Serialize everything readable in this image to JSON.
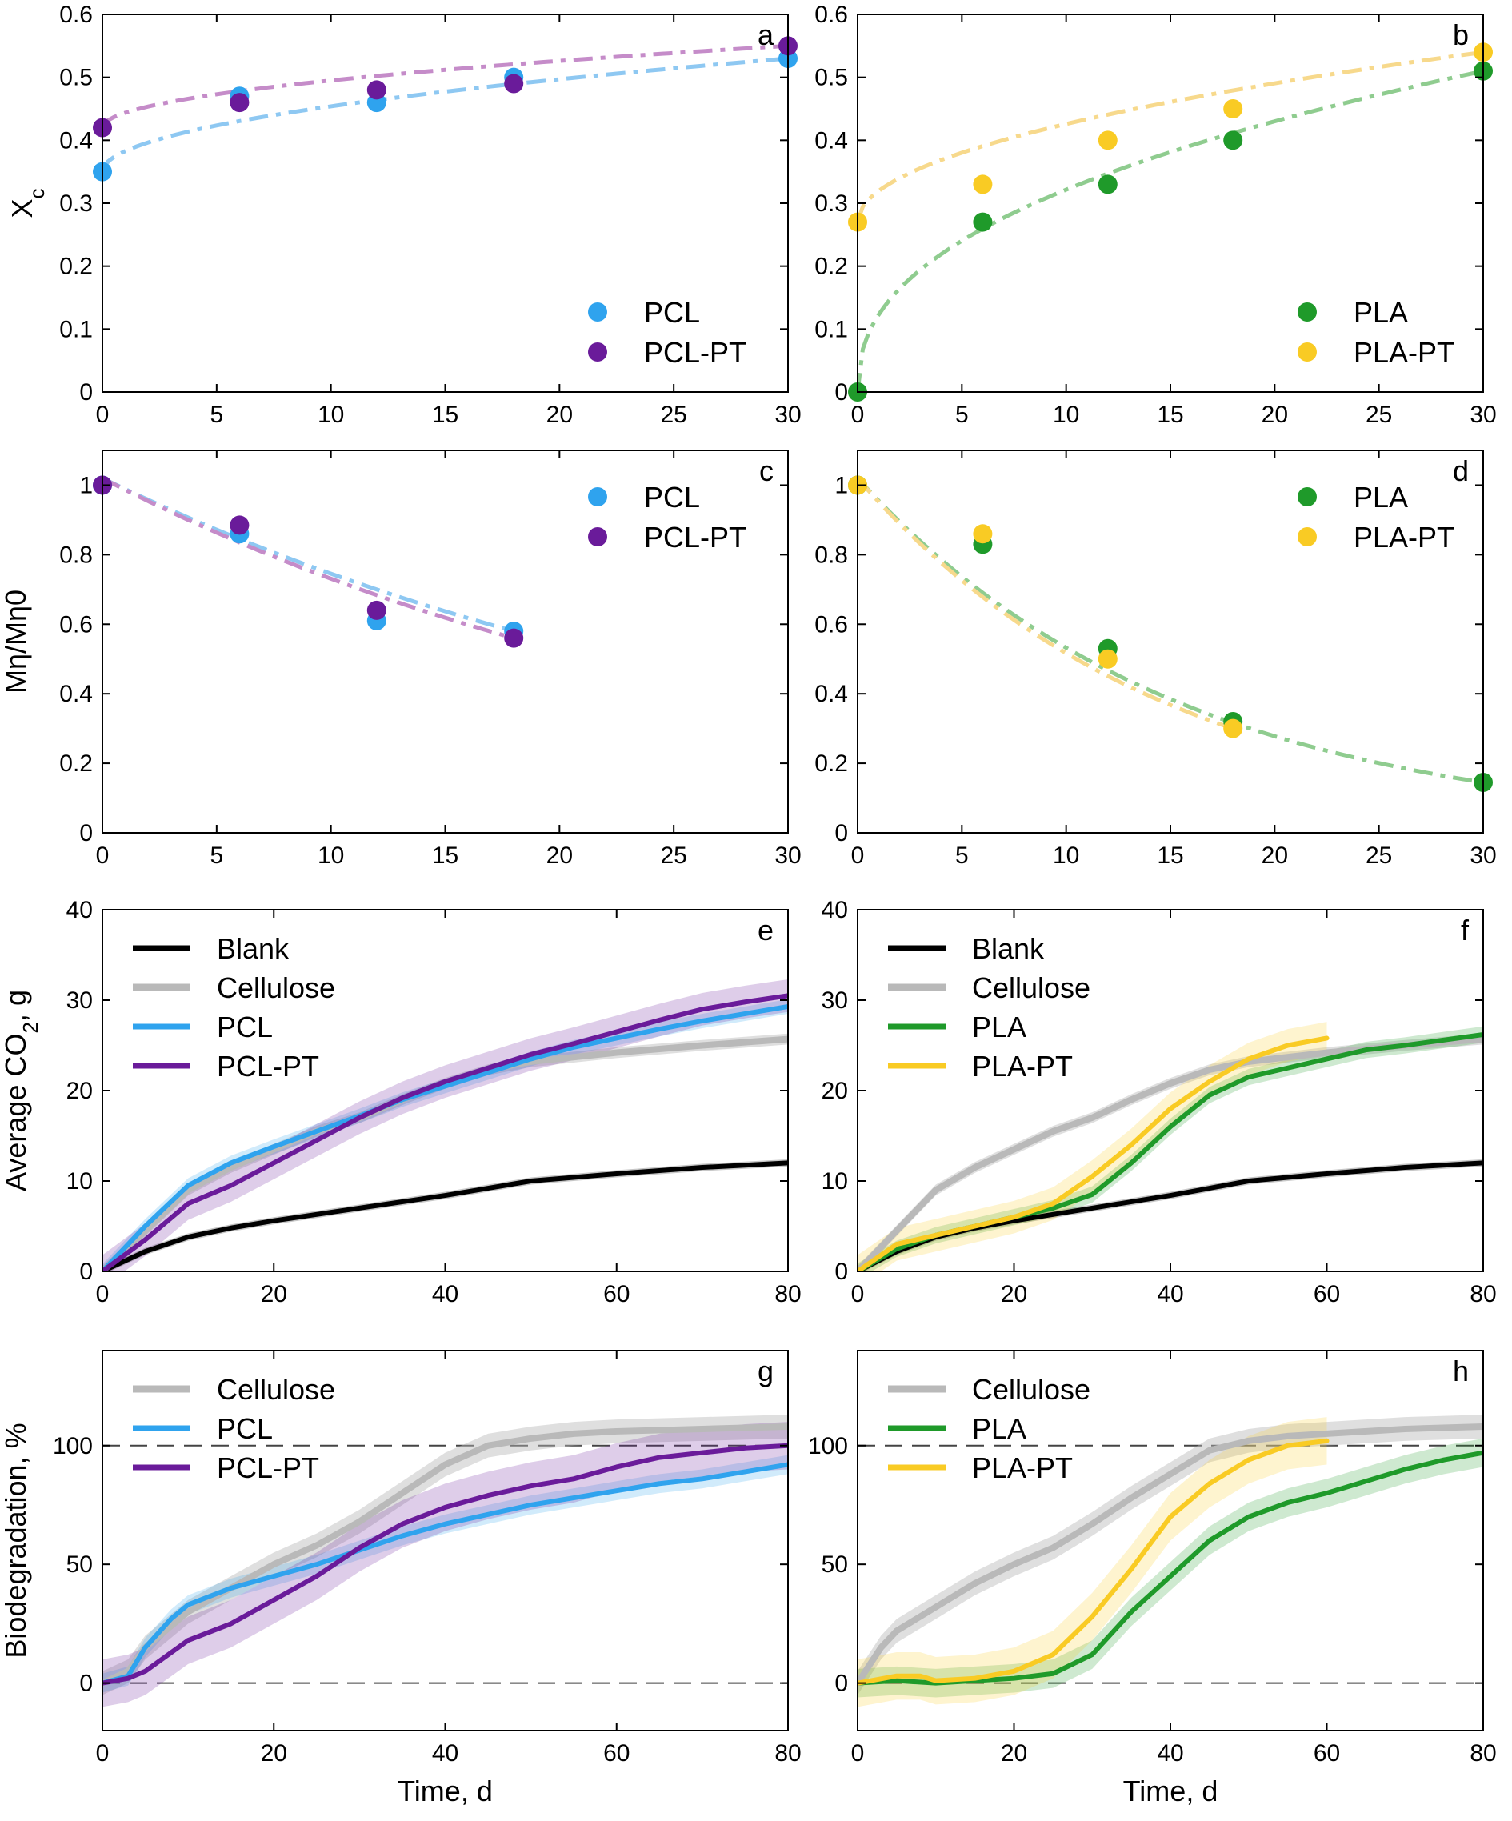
{
  "colors": {
    "PCL": "#2fa3ee",
    "PCL-PT": "#6a1b9a",
    "PLA": "#1f9a2a",
    "PLA-PT": "#f9cb24",
    "Blank": "#000000",
    "Cellulose": "#b9b9b9",
    "fit_PCL": "#8ec8f2",
    "fit_PCL-PT": "#c58cc9",
    "fit_PLA": "#8fcc8f",
    "fit_PLA-PT": "#f7d98c"
  },
  "axis_labels": {
    "xc": "X_c",
    "mn": "Mη/Mη0",
    "co2": "Average CO_2, g",
    "bio": "Biodegradation, %",
    "time": "Time, d"
  },
  "chart_data": [
    {
      "panel": "a",
      "type": "scatter",
      "xlabel": "",
      "ylabel": "X_c",
      "xlim": [
        0,
        30
      ],
      "ylim": [
        0,
        0.6
      ],
      "xticks": [
        0,
        5,
        10,
        15,
        20,
        25,
        30
      ],
      "yticks": [
        0,
        0.1,
        0.2,
        0.3,
        0.4,
        0.5,
        0.6
      ],
      "legend": "bottom-right",
      "series": [
        {
          "name": "PCL",
          "x": [
            0,
            6,
            12,
            18,
            30
          ],
          "y": [
            0.35,
            0.47,
            0.46,
            0.5,
            0.53
          ],
          "fit": "power"
        },
        {
          "name": "PCL-PT",
          "x": [
            0,
            6,
            12,
            18,
            30
          ],
          "y": [
            0.42,
            0.46,
            0.48,
            0.49,
            0.55
          ],
          "fit": "power"
        }
      ]
    },
    {
      "panel": "b",
      "type": "scatter",
      "xlabel": "",
      "ylabel": "",
      "xlim": [
        0,
        30
      ],
      "ylim": [
        0,
        0.6
      ],
      "xticks": [
        0,
        5,
        10,
        15,
        20,
        25,
        30
      ],
      "yticks": [
        0,
        0.1,
        0.2,
        0.3,
        0.4,
        0.5,
        0.6
      ],
      "legend": "bottom-right",
      "series": [
        {
          "name": "PLA",
          "x": [
            0,
            6,
            12,
            18,
            30
          ],
          "y": [
            0.0,
            0.27,
            0.33,
            0.4,
            0.51
          ],
          "fit": "power"
        },
        {
          "name": "PLA-PT",
          "x": [
            0,
            6,
            12,
            18,
            30
          ],
          "y": [
            0.27,
            0.33,
            0.4,
            0.45,
            0.54
          ],
          "fit": "power"
        }
      ]
    },
    {
      "panel": "c",
      "type": "scatter",
      "xlabel": "",
      "ylabel": "Mη/Mη0",
      "xlim": [
        0,
        30
      ],
      "ylim": [
        0,
        1.1
      ],
      "xticks": [
        0,
        5,
        10,
        15,
        20,
        25,
        30
      ],
      "yticks": [
        0,
        0.2,
        0.4,
        0.6,
        0.8,
        1
      ],
      "legend": "top-right",
      "series": [
        {
          "name": "PCL",
          "x": [
            0,
            6,
            12,
            18
          ],
          "y": [
            1.0,
            0.86,
            0.61,
            0.58
          ],
          "fit": "exp",
          "fit_xmax": 18
        },
        {
          "name": "PCL-PT",
          "x": [
            0,
            6,
            12,
            18
          ],
          "y": [
            1.0,
            0.885,
            0.64,
            0.56
          ],
          "fit": "exp",
          "fit_xmax": 18
        }
      ]
    },
    {
      "panel": "d",
      "type": "scatter",
      "xlabel": "",
      "ylabel": "",
      "xlim": [
        0,
        30
      ],
      "ylim": [
        0,
        1.1
      ],
      "xticks": [
        0,
        5,
        10,
        15,
        20,
        25,
        30
      ],
      "yticks": [
        0,
        0.2,
        0.4,
        0.6,
        0.8,
        1
      ],
      "legend": "top-right",
      "series": [
        {
          "name": "PLA",
          "x": [
            0,
            6,
            12,
            18,
            30
          ],
          "y": [
            1.0,
            0.83,
            0.53,
            0.32,
            0.145
          ],
          "fit": "exp",
          "fit_xmax": 30
        },
        {
          "name": "PLA-PT",
          "x": [
            0,
            6,
            12,
            18
          ],
          "y": [
            1.0,
            0.86,
            0.5,
            0.3
          ],
          "fit": "exp",
          "fit_xmax": 18
        }
      ]
    },
    {
      "panel": "e",
      "type": "line",
      "xlabel": "",
      "ylabel": "Average CO_2, g",
      "xlim": [
        0,
        80
      ],
      "ylim": [
        0,
        40
      ],
      "xticks": [
        0,
        20,
        40,
        60,
        80
      ],
      "yticks": [
        0,
        10,
        20,
        30,
        40
      ],
      "legend": "top-left",
      "series": [
        {
          "name": "Blank",
          "x": [
            0,
            5,
            10,
            15,
            20,
            30,
            40,
            45,
            50,
            60,
            70,
            80
          ],
          "y": [
            0,
            2.2,
            3.8,
            4.8,
            5.6,
            7.0,
            8.4,
            9.2,
            10.0,
            10.8,
            11.5,
            12.0
          ],
          "band": 0.4
        },
        {
          "name": "Cellulose",
          "x": [
            0,
            5,
            10,
            15,
            20,
            25,
            30,
            35,
            40,
            45,
            50,
            60,
            70,
            80
          ],
          "y": [
            0,
            4.5,
            9.0,
            11.5,
            13.5,
            15.5,
            17.0,
            19.0,
            20.8,
            22.3,
            23.2,
            24.2,
            25.0,
            25.7
          ],
          "band": 0.6
        },
        {
          "name": "PCL",
          "x": [
            0,
            5,
            10,
            15,
            20,
            25,
            30,
            35,
            40,
            45,
            50,
            55,
            60,
            65,
            70,
            75,
            80
          ],
          "y": [
            0,
            5.0,
            9.5,
            12.0,
            13.8,
            15.5,
            17.2,
            19.0,
            20.5,
            22.0,
            23.5,
            24.8,
            25.8,
            26.8,
            27.7,
            28.5,
            29.3
          ],
          "band": 0.8
        },
        {
          "name": "PCL-PT",
          "x": [
            0,
            5,
            10,
            15,
            20,
            25,
            30,
            35,
            40,
            45,
            50,
            55,
            60,
            65,
            70,
            75,
            80
          ],
          "y": [
            0,
            3.5,
            7.5,
            9.5,
            12.0,
            14.5,
            17.0,
            19.2,
            21.0,
            22.5,
            24.0,
            25.2,
            26.5,
            27.8,
            29.0,
            29.8,
            30.5
          ],
          "band": 1.8
        }
      ]
    },
    {
      "panel": "f",
      "type": "line",
      "xlabel": "",
      "ylabel": "",
      "xlim": [
        0,
        80
      ],
      "ylim": [
        0,
        40
      ],
      "xticks": [
        0,
        20,
        40,
        60,
        80
      ],
      "yticks": [
        0,
        10,
        20,
        30,
        40
      ],
      "legend": "top-left",
      "series": [
        {
          "name": "Blank",
          "x": [
            0,
            5,
            10,
            15,
            20,
            30,
            40,
            45,
            50,
            60,
            70,
            80
          ],
          "y": [
            0,
            2.2,
            3.8,
            4.8,
            5.6,
            7.0,
            8.4,
            9.2,
            10.0,
            10.8,
            11.5,
            12.0
          ],
          "band": 0.4
        },
        {
          "name": "Cellulose",
          "x": [
            0,
            5,
            10,
            15,
            20,
            25,
            30,
            35,
            40,
            45,
            50,
            60,
            70,
            80
          ],
          "y": [
            0,
            4.5,
            9.0,
            11.5,
            13.5,
            15.5,
            17.0,
            19.0,
            20.8,
            22.3,
            23.2,
            24.2,
            25.0,
            25.7
          ],
          "band": 0.6
        },
        {
          "name": "PLA",
          "x": [
            0,
            5,
            10,
            15,
            20,
            25,
            30,
            35,
            40,
            45,
            50,
            55,
            60,
            65,
            70,
            75,
            80
          ],
          "y": [
            0,
            2.5,
            4.0,
            5.0,
            6.0,
            7.0,
            8.5,
            12.0,
            16.0,
            19.5,
            21.5,
            22.5,
            23.5,
            24.5,
            25.0,
            25.6,
            26.2
          ],
          "band": 0.9
        },
        {
          "name": "PLA-PT",
          "x": [
            0,
            5,
            10,
            15,
            20,
            25,
            30,
            35,
            40,
            45,
            50,
            55,
            60
          ],
          "y": [
            0,
            3.0,
            4.0,
            5.0,
            6.0,
            7.5,
            10.5,
            14.0,
            18.0,
            21.0,
            23.5,
            25.0,
            25.8
          ],
          "band": 1.8
        }
      ]
    },
    {
      "panel": "g",
      "type": "line",
      "xlabel": "Time, d",
      "ylabel": "Biodegradation, %",
      "xlim": [
        0,
        80
      ],
      "ylim": [
        -20,
        140
      ],
      "xticks": [
        0,
        20,
        40,
        60,
        80
      ],
      "yticks": [
        0,
        50,
        100
      ],
      "reference_lines": [
        0,
        100
      ],
      "legend": "top-left",
      "series": [
        {
          "name": "Cellulose",
          "x": [
            0,
            3,
            5,
            10,
            15,
            20,
            25,
            30,
            35,
            40,
            45,
            50,
            55,
            60,
            70,
            80
          ],
          "y": [
            0,
            5,
            15,
            30,
            40,
            50,
            58,
            68,
            80,
            92,
            100,
            103,
            105,
            106,
            107,
            108
          ],
          "band": 5
        },
        {
          "name": "PCL",
          "x": [
            0,
            3,
            5,
            8,
            10,
            15,
            20,
            25,
            30,
            35,
            40,
            45,
            50,
            55,
            60,
            65,
            70,
            75,
            80
          ],
          "y": [
            0,
            3,
            15,
            27,
            33,
            40,
            45,
            50,
            56,
            62,
            67,
            71,
            75,
            78,
            81,
            84,
            86,
            89,
            92
          ],
          "band": 4
        },
        {
          "name": "PCL-PT",
          "x": [
            0,
            3,
            5,
            10,
            15,
            20,
            25,
            30,
            35,
            40,
            45,
            50,
            55,
            60,
            65,
            70,
            75,
            80
          ],
          "y": [
            0,
            2,
            5,
            18,
            25,
            35,
            45,
            57,
            67,
            74,
            79,
            83,
            86,
            91,
            95,
            97,
            99,
            100
          ],
          "band": 10
        }
      ]
    },
    {
      "panel": "h",
      "type": "line",
      "xlabel": "Time, d",
      "ylabel": "",
      "xlim": [
        0,
        80
      ],
      "ylim": [
        -20,
        140
      ],
      "xticks": [
        0,
        20,
        40,
        60,
        80
      ],
      "yticks": [
        0,
        50,
        100
      ],
      "reference_lines": [
        0,
        100
      ],
      "legend": "top-left",
      "series": [
        {
          "name": "Cellulose",
          "x": [
            0,
            3,
            5,
            10,
            15,
            20,
            25,
            30,
            35,
            40,
            45,
            50,
            55,
            60,
            70,
            80
          ],
          "y": [
            0,
            15,
            22,
            32,
            42,
            50,
            57,
            67,
            78,
            88,
            98,
            102,
            104,
            105,
            107,
            108
          ],
          "band": 5
        },
        {
          "name": "PLA",
          "x": [
            0,
            5,
            10,
            15,
            20,
            25,
            30,
            35,
            40,
            45,
            50,
            55,
            60,
            65,
            70,
            75,
            80
          ],
          "y": [
            0,
            1,
            0,
            1,
            2,
            4,
            12,
            30,
            45,
            60,
            70,
            76,
            80,
            85,
            90,
            94,
            97
          ],
          "band": 6
        },
        {
          "name": "PLA-PT",
          "x": [
            0,
            5,
            8,
            10,
            15,
            20,
            25,
            30,
            35,
            40,
            45,
            50,
            55,
            60
          ],
          "y": [
            0,
            3,
            3,
            1,
            2,
            5,
            12,
            28,
            48,
            70,
            84,
            94,
            100,
            102
          ],
          "band": 10
        }
      ]
    }
  ]
}
